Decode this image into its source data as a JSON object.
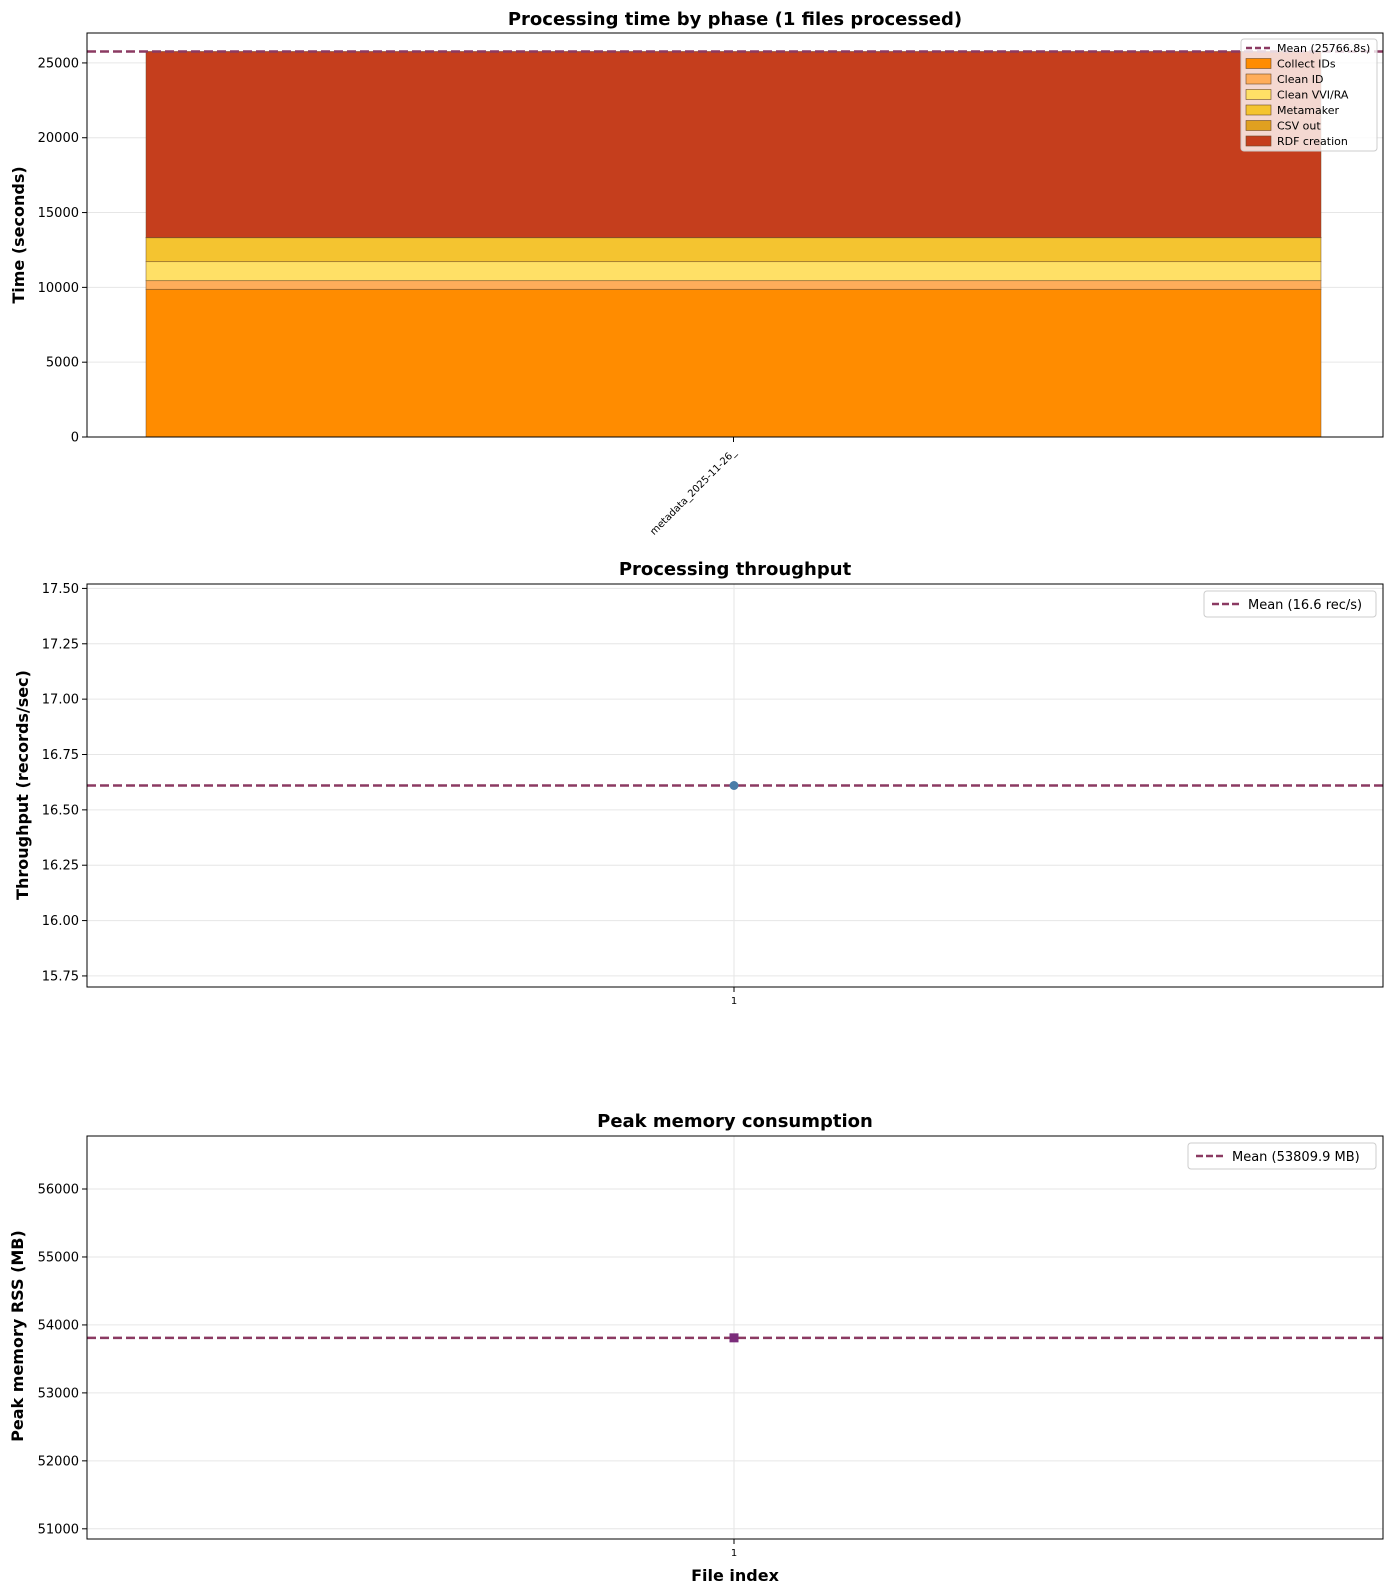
{
  "chart_data": [
    {
      "type": "bar",
      "stacked": true,
      "title": "Processing time by phase (1 files processed)",
      "ylabel": "Time (seconds)",
      "xlabel": "",
      "categories": [
        "metadata_2025-11-26_"
      ],
      "ylim": [
        0,
        27000
      ],
      "yticks": [
        0,
        5000,
        10000,
        15000,
        20000,
        25000
      ],
      "grid": true,
      "legend_placement": "top-right",
      "mean_line": {
        "label": "Mean (25766.8s)",
        "value": 25766.8,
        "color": "#8b3a62"
      },
      "series": [
        {
          "name": "Collect IDs",
          "values": [
            9870
          ],
          "color": "#ff8c00"
        },
        {
          "name": "Clean ID",
          "values": [
            580
          ],
          "color": "#ffad5a"
        },
        {
          "name": "Clean VVI/RA",
          "values": [
            1270
          ],
          "color": "#ffe066"
        },
        {
          "name": "Metamaker",
          "values": [
            1600
          ],
          "color": "#f4c430"
        },
        {
          "name": "CSV out",
          "values": [
            10
          ],
          "color": "#e0a020"
        },
        {
          "name": "RDF creation",
          "values": [
            12436.8
          ],
          "color": "#c53e1d"
        }
      ]
    },
    {
      "type": "scatter",
      "title": "Processing throughput",
      "ylabel": "Throughput (records/sec)",
      "xlabel": "",
      "x": [
        1
      ],
      "xticks": [
        1
      ],
      "ylim": [
        15.7,
        17.52
      ],
      "yticks": [
        15.75,
        16.0,
        16.25,
        16.5,
        16.75,
        17.0,
        17.25,
        17.5
      ],
      "ytick_labels": [
        "15.75",
        "16.00",
        "16.25",
        "16.50",
        "16.75",
        "17.00",
        "17.25",
        "17.50"
      ],
      "grid": true,
      "legend_placement": "top-right",
      "series": [
        {
          "values": [
            16.61
          ],
          "color": "#4a7da8",
          "marker": "circle"
        }
      ],
      "mean_line": {
        "label": "Mean (16.6 rec/s)",
        "value": 16.61,
        "color": "#8b3a62"
      }
    },
    {
      "type": "scatter",
      "title": "Peak memory consumption",
      "ylabel": "Peak memory RSS (MB)",
      "xlabel": "File index",
      "x": [
        1
      ],
      "xticks": [
        1
      ],
      "ylim": [
        50850,
        56780
      ],
      "yticks": [
        51000,
        52000,
        53000,
        54000,
        55000,
        56000
      ],
      "ytick_labels": [
        "51000",
        "52000",
        "53000",
        "54000",
        "55000",
        "56000"
      ],
      "grid": true,
      "legend_placement": "top-right",
      "series": [
        {
          "values": [
            53809.9
          ],
          "color": "#7b2d7b",
          "marker": "square"
        }
      ],
      "mean_line": {
        "label": "Mean (53809.9 MB)",
        "value": 53809.9,
        "color": "#8b3a62"
      }
    }
  ]
}
